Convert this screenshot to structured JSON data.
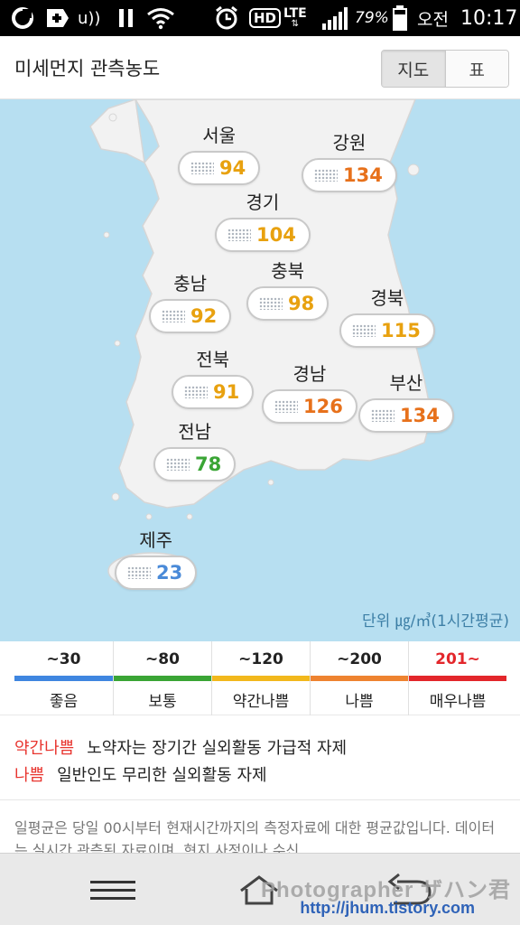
{
  "status_bar": {
    "battery_percent": "79%",
    "ampm": "오전",
    "time": "10:17",
    "network": "LTE",
    "hd": "HD",
    "icons": [
      "ollehTV-icon",
      "medical-plus-icon",
      "nfc-icon",
      "pause-icon",
      "wifi-icon",
      "alarm-icon",
      "hd-voice-icon",
      "lte-icon",
      "signal-icon",
      "battery-icon"
    ]
  },
  "header": {
    "title": "미세먼지 관측농도",
    "tabs": [
      {
        "label": "지도",
        "active": true
      },
      {
        "label": "표",
        "active": false
      }
    ]
  },
  "map": {
    "regions": [
      {
        "name": "서울",
        "value": "94",
        "color": "#e8a10f"
      },
      {
        "name": "강원",
        "value": "134",
        "color": "#e7711b"
      },
      {
        "name": "경기",
        "value": "104",
        "color": "#e8a10f"
      },
      {
        "name": "충북",
        "value": "98",
        "color": "#e8a10f"
      },
      {
        "name": "충남",
        "value": "92",
        "color": "#e8a10f"
      },
      {
        "name": "경북",
        "value": "115",
        "color": "#e8a10f"
      },
      {
        "name": "전북",
        "value": "91",
        "color": "#e8a10f"
      },
      {
        "name": "경남",
        "value": "126",
        "color": "#e7711b"
      },
      {
        "name": "부산",
        "value": "134",
        "color": "#e7711b"
      },
      {
        "name": "전남",
        "value": "78",
        "color": "#3aa535"
      },
      {
        "name": "제주",
        "value": "23",
        "color": "#4a8ad8"
      }
    ],
    "unit_note": "단위 ㎍/㎥(1시간평균)"
  },
  "legend": [
    {
      "range": "~30",
      "label": "좋음",
      "color": "#3f86e0",
      "range_color": "#222222"
    },
    {
      "range": "~80",
      "label": "보통",
      "color": "#3aa535",
      "range_color": "#222222"
    },
    {
      "range": "~120",
      "label": "약간나쁨",
      "color": "#f2b81c",
      "range_color": "#222222"
    },
    {
      "range": "~200",
      "label": "나쁨",
      "color": "#ee8330",
      "range_color": "#222222"
    },
    {
      "range": "201~",
      "label": "매우나쁨",
      "color": "#e3262b",
      "range_color": "#e3262b"
    }
  ],
  "notes": [
    {
      "key": "약간나쁨",
      "text": "노약자는 장기간 실외활동 가급적 자제"
    },
    {
      "key": "나쁨",
      "text": "일반인도 무리한 실외활동 자제"
    }
  ],
  "description": "일평균은 당일 00시부터 현재시간까지의 측정자료에 대한 평균값입니다. 데이터는 실시간 관측된 자료이며, 현지 사정이나 수신",
  "nav": {
    "icons": [
      "menu-icon",
      "home-icon",
      "back-icon"
    ]
  },
  "watermark": {
    "line1": "Photographer ザハン君",
    "line2": "http://jhum.tistory.com"
  }
}
